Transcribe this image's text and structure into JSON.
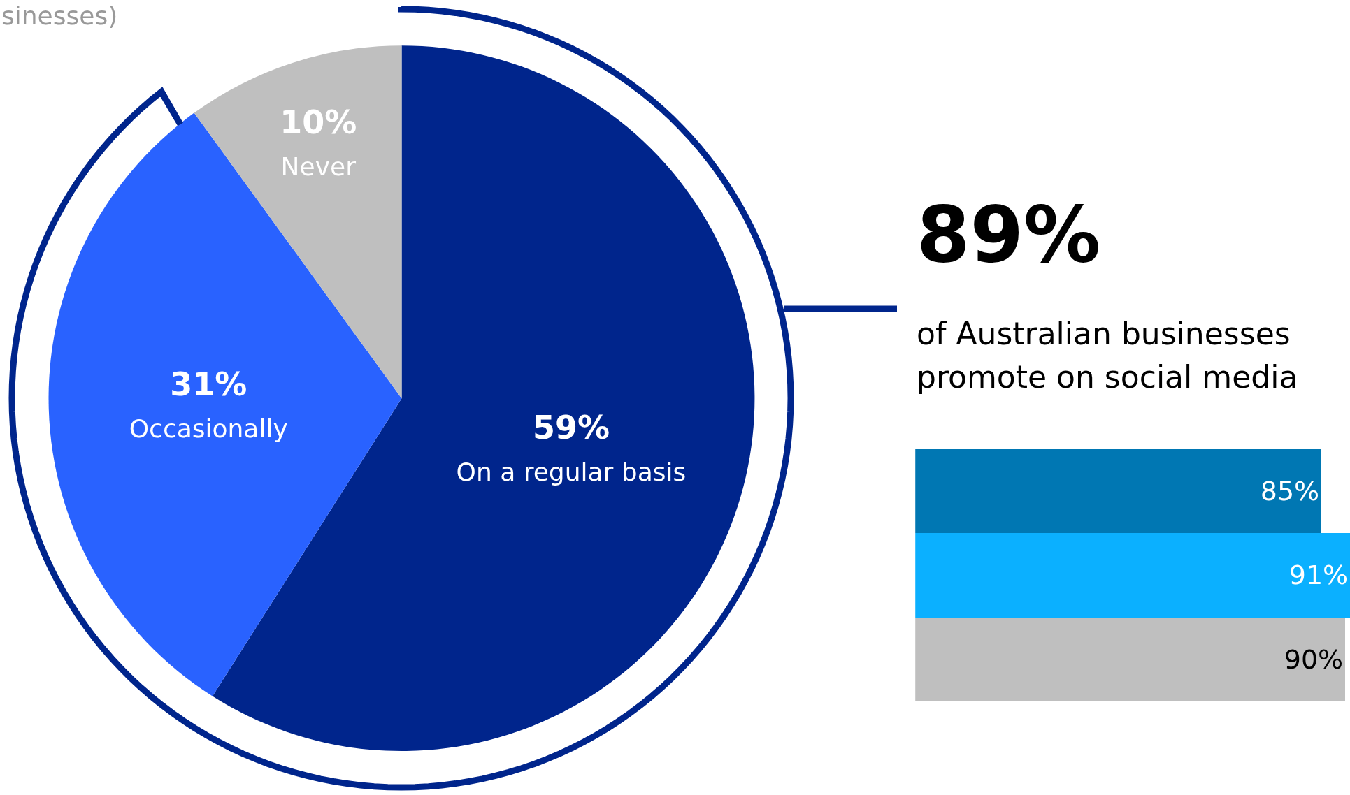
{
  "chart_data": [
    {
      "type": "pie",
      "annotations": [
        "sinesses)"
      ],
      "categories": [
        "On a regular basis",
        "Occasionally",
        "Never"
      ],
      "values": [
        59,
        31,
        10
      ],
      "colors": [
        "#00258c",
        "#2962ff",
        "#bfbfbf"
      ],
      "value_labels": [
        "59%",
        "31%",
        "10%"
      ]
    },
    {
      "type": "other",
      "annotations": [
        "89%",
        "of Australian businesses",
        "promote on social media"
      ]
    },
    {
      "type": "bar",
      "orientation": "horizontal",
      "categories": [
        null,
        null,
        null
      ],
      "values": [
        85,
        91,
        90
      ],
      "colors": [
        "#0077b3",
        "#0bb0ff",
        "#bfbfbf"
      ],
      "value_labels": [
        "85%",
        "91%",
        "90%"
      ]
    }
  ]
}
